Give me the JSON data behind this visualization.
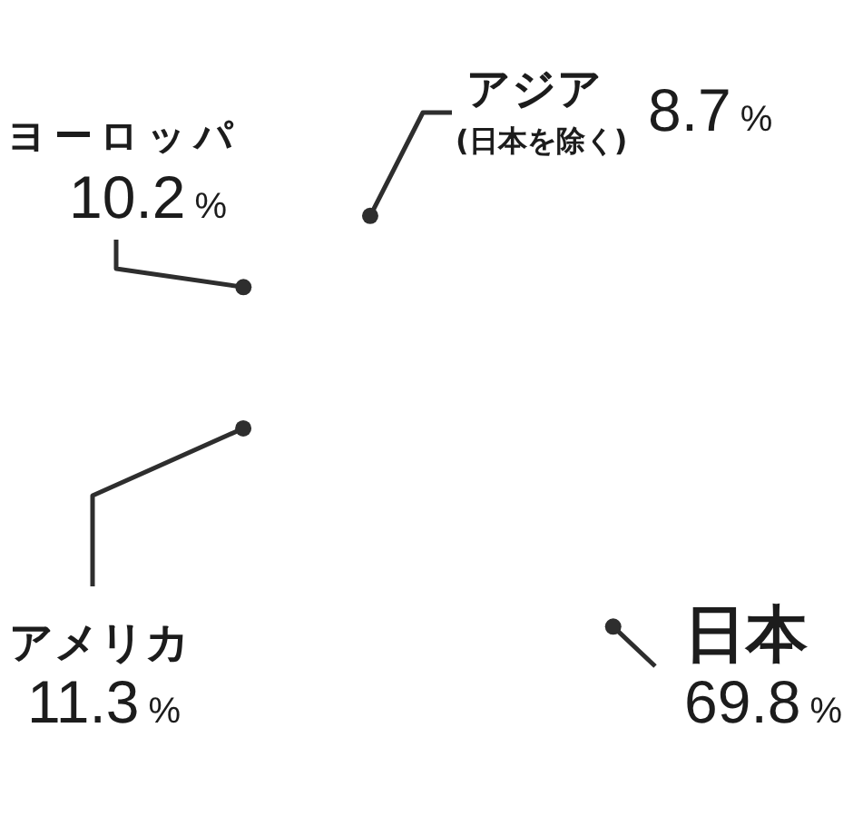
{
  "chart_data": {
    "type": "other",
    "categories": [
      "日本",
      "アメリカ",
      "ヨーロッパ",
      "アジア\n(日本を除く)"
    ],
    "values": [
      69.8,
      11.3,
      10.2,
      8.7
    ],
    "value_labels": [
      "69.8%",
      "11.3%",
      "10.2%",
      "8.7%"
    ]
  }
}
